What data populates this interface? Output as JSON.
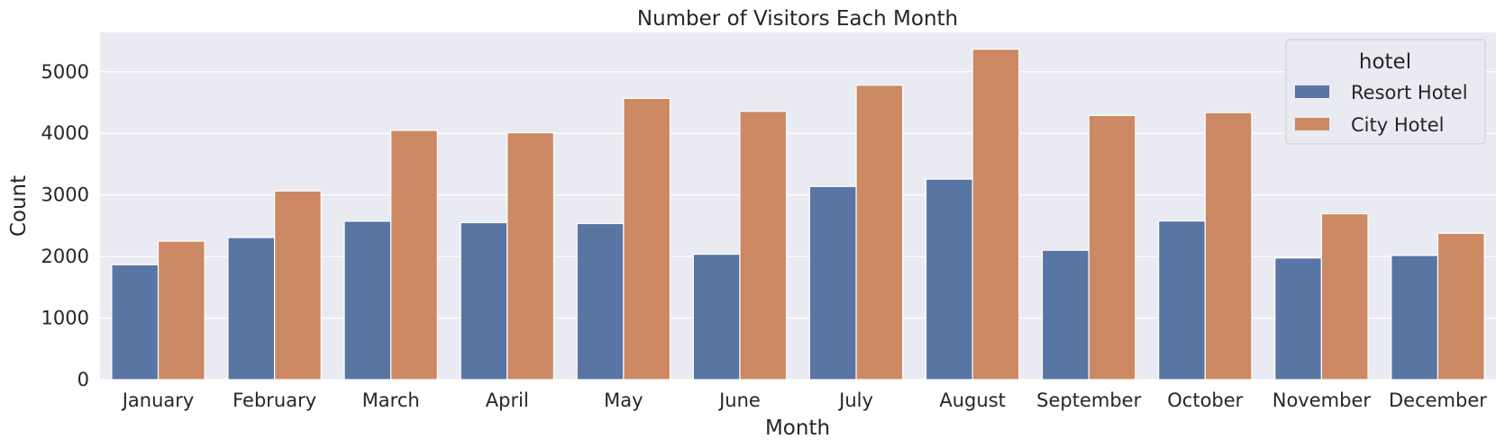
{
  "chart_data": {
    "type": "bar",
    "title": "Number of Visitors Each Month",
    "xlabel": "Month",
    "ylabel": "Count",
    "categories": [
      "January",
      "February",
      "March",
      "April",
      "May",
      "June",
      "July",
      "August",
      "September",
      "October",
      "November",
      "December"
    ],
    "series": [
      {
        "name": "Resort Hotel",
        "color": "#5875a4",
        "values": [
          1866,
          2308,
          2573,
          2550,
          2535,
          2037,
          3137,
          3257,
          2102,
          2577,
          1976,
          2017
        ]
      },
      {
        "name": "City Hotel",
        "color": "#cc8963",
        "values": [
          2249,
          3064,
          4048,
          4010,
          4568,
          4358,
          4782,
          5367,
          4290,
          4337,
          2694,
          2377
        ]
      }
    ],
    "ylim": [
      0,
      5640
    ],
    "yticks": [
      0,
      1000,
      2000,
      3000,
      4000,
      5000
    ],
    "grid": true,
    "legend": {
      "title": "hotel",
      "position": "top-right"
    },
    "colors": {
      "plot_background": "#eaeaf2",
      "grid": "#ffffff"
    }
  }
}
